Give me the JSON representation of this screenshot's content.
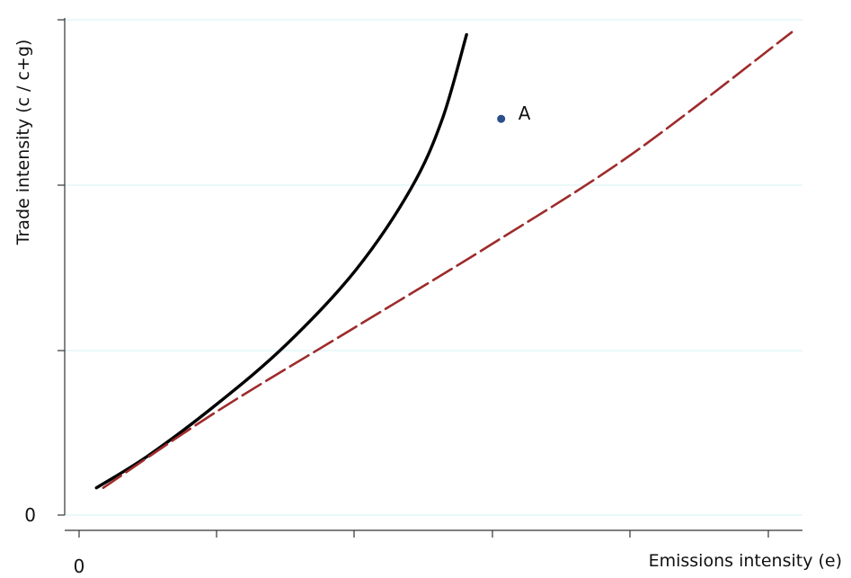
{
  "chart_data": {
    "type": "line",
    "title": "",
    "xlabel": "Emissions intensity  (e)",
    "ylabel": "Trade intensity (c / c+g)",
    "x_tick_label_origin": "0",
    "y_tick_label_origin": "0",
    "xlim": [
      0,
      10
    ],
    "ylim": [
      0,
      10
    ],
    "grid": true,
    "legend": "none",
    "series": [
      {
        "style": "solid",
        "color": "#000000",
        "x": [
          0.25,
          1.0,
          2.0,
          3.0,
          4.0,
          4.8,
          5.25,
          5.6
        ],
        "y": [
          0.55,
          1.2,
          2.25,
          3.45,
          4.95,
          6.6,
          8.0,
          9.7
        ]
      },
      {
        "style": "dashed",
        "color": "#9e2b2b",
        "x": [
          0.35,
          2.0,
          4.0,
          6.0,
          8.0,
          10.3
        ],
        "y": [
          0.55,
          2.1,
          3.8,
          5.5,
          7.3,
          9.75
        ]
      }
    ],
    "points": [
      {
        "label": "A",
        "x": 6.1,
        "y": 8.0,
        "color": "#2a4f8a"
      }
    ]
  }
}
